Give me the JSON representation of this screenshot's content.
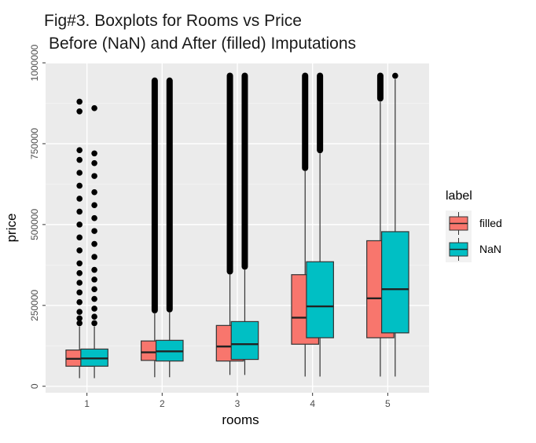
{
  "chart_data": {
    "type": "boxplot",
    "title": "Fig#3. Boxplots for Rooms vs Price",
    "subtitle": "Before (NaN) and After (filled) Imputations",
    "xlabel": "rooms",
    "ylabel": "price",
    "categories": [
      "1",
      "2",
      "3",
      "4",
      "5"
    ],
    "ylim": [
      -20000,
      1000000
    ],
    "y_ticks": [
      0,
      250000,
      500000,
      750000,
      1000000
    ],
    "y_tick_labels": [
      "0",
      "250000",
      "500000",
      "750000",
      "1000000"
    ],
    "grid": true,
    "legend": {
      "title": "label",
      "position": "right"
    },
    "series": [
      {
        "name": "filled",
        "color": "#F8766D",
        "boxes": [
          {
            "category": "1",
            "min": 25000,
            "q1": 62000,
            "median": 85000,
            "q3": 112000,
            "whisker_high": 185000,
            "outliers": [
              195000,
              210000,
              230000,
              260000,
              290000,
              320000,
              350000,
              380000,
              420000,
              460000,
              500000,
              540000,
              580000,
              620000,
              660000,
              700000,
              730000,
              850000,
              880000
            ]
          },
          {
            "category": "2",
            "min": 28000,
            "q1": 80000,
            "median": 105000,
            "q3": 140000,
            "whisker_high": 228000,
            "outliers_from": 235000,
            "outliers_to": 945000
          },
          {
            "category": "3",
            "min": 35000,
            "q1": 78000,
            "median": 123000,
            "q3": 188000,
            "whisker_high": 345000,
            "outliers_from": 355000,
            "outliers_to": 960000
          },
          {
            "category": "4",
            "min": 30000,
            "q1": 130000,
            "median": 212000,
            "q3": 345000,
            "whisker_high": 665000,
            "outliers_from": 675000,
            "outliers_to": 960000
          },
          {
            "category": "5",
            "min": 30000,
            "q1": 150000,
            "median": 272000,
            "q3": 450000,
            "whisker_high": 880000,
            "outliers_from": 890000,
            "outliers_to": 960000
          }
        ]
      },
      {
        "name": "NaN",
        "color": "#00BFC4",
        "boxes": [
          {
            "category": "1",
            "min": 25000,
            "q1": 62000,
            "median": 86000,
            "q3": 115000,
            "whisker_high": 185000,
            "outliers": [
              195000,
              215000,
              240000,
              270000,
              300000,
              330000,
              360000,
              400000,
              440000,
              480000,
              520000,
              560000,
              600000,
              650000,
              690000,
              720000,
              860000
            ]
          },
          {
            "category": "2",
            "min": 28000,
            "q1": 78000,
            "median": 108000,
            "q3": 142000,
            "whisker_high": 230000,
            "outliers_from": 238000,
            "outliers_to": 945000
          },
          {
            "category": "3",
            "min": 35000,
            "q1": 83000,
            "median": 130000,
            "q3": 200000,
            "whisker_high": 360000,
            "outliers_from": 370000,
            "outliers_to": 960000
          },
          {
            "category": "4",
            "min": 30000,
            "q1": 150000,
            "median": 247000,
            "q3": 385000,
            "whisker_high": 720000,
            "outliers_from": 730000,
            "outliers_to": 960000
          },
          {
            "category": "5",
            "min": 30000,
            "q1": 165000,
            "median": 300000,
            "q3": 478000,
            "whisker_high": 950000,
            "outliers": [
              960000
            ]
          }
        ]
      }
    ]
  }
}
